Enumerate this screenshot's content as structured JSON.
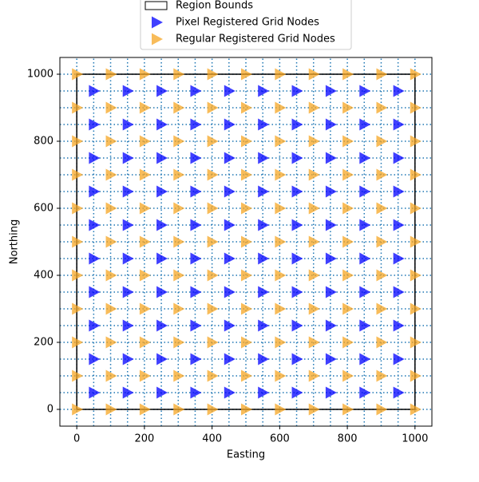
{
  "chart_data": {
    "type": "scatter",
    "xlabel": "Easting",
    "ylabel": "Northing",
    "xlim": [
      -50,
      1050
    ],
    "ylim": [
      -50,
      1050
    ],
    "xticks": [
      0,
      200,
      400,
      600,
      800,
      1000
    ],
    "yticks": [
      0,
      200,
      400,
      600,
      800,
      1000
    ],
    "region": {
      "name": "Region Bounds",
      "color": "#000000",
      "xlim": [
        0,
        1000
      ],
      "ylim": [
        0,
        1000
      ]
    },
    "series": [
      {
        "name": "Pixel Registered Grid Nodes",
        "color": "#0000ff",
        "x": [
          50,
          150,
          250,
          350,
          450,
          550,
          650,
          750,
          850,
          950,
          50,
          150,
          250,
          350,
          450,
          550,
          650,
          750,
          850,
          950,
          50,
          150,
          250,
          350,
          450,
          550,
          650,
          750,
          850,
          950,
          50,
          150,
          250,
          350,
          450,
          550,
          650,
          750,
          850,
          950,
          50,
          150,
          250,
          350,
          450,
          550,
          650,
          750,
          850,
          950,
          50,
          150,
          250,
          350,
          450,
          550,
          650,
          750,
          850,
          950,
          50,
          150,
          250,
          350,
          450,
          550,
          650,
          750,
          850,
          950,
          50,
          150,
          250,
          350,
          450,
          550,
          650,
          750,
          850,
          950,
          50,
          150,
          250,
          350,
          450,
          550,
          650,
          750,
          850,
          950,
          50,
          150,
          250,
          350,
          450,
          550,
          650,
          750,
          850,
          950
        ],
        "y": [
          50,
          50,
          50,
          50,
          50,
          50,
          50,
          50,
          50,
          50,
          150,
          150,
          150,
          150,
          150,
          150,
          150,
          150,
          150,
          150,
          250,
          250,
          250,
          250,
          250,
          250,
          250,
          250,
          250,
          250,
          350,
          350,
          350,
          350,
          350,
          350,
          350,
          350,
          350,
          350,
          450,
          450,
          450,
          450,
          450,
          450,
          450,
          450,
          450,
          450,
          550,
          550,
          550,
          550,
          550,
          550,
          550,
          550,
          550,
          550,
          650,
          650,
          650,
          650,
          650,
          650,
          650,
          650,
          650,
          650,
          750,
          750,
          750,
          750,
          750,
          750,
          750,
          750,
          750,
          750,
          850,
          850,
          850,
          850,
          850,
          850,
          850,
          850,
          850,
          850,
          950,
          950,
          950,
          950,
          950,
          950,
          950,
          950,
          950,
          950
        ]
      },
      {
        "name": "Regular Registered Grid Nodes",
        "color": "#f5a623",
        "x": [
          0,
          100,
          200,
          300,
          400,
          500,
          600,
          700,
          800,
          900,
          1000,
          0,
          100,
          200,
          300,
          400,
          500,
          600,
          700,
          800,
          900,
          1000,
          0,
          100,
          200,
          300,
          400,
          500,
          600,
          700,
          800,
          900,
          1000,
          0,
          100,
          200,
          300,
          400,
          500,
          600,
          700,
          800,
          900,
          1000,
          0,
          100,
          200,
          300,
          400,
          500,
          600,
          700,
          800,
          900,
          1000,
          0,
          100,
          200,
          300,
          400,
          500,
          600,
          700,
          800,
          900,
          1000,
          0,
          100,
          200,
          300,
          400,
          500,
          600,
          700,
          800,
          900,
          1000,
          0,
          100,
          200,
          300,
          400,
          500,
          600,
          700,
          800,
          900,
          1000,
          0,
          100,
          200,
          300,
          400,
          500,
          600,
          700,
          800,
          900,
          1000,
          0,
          100,
          200,
          300,
          400,
          500,
          600,
          700,
          800,
          900,
          1000,
          0,
          100,
          200,
          300,
          400,
          500,
          600,
          700,
          800,
          900,
          1000
        ],
        "y": [
          0,
          0,
          0,
          0,
          0,
          0,
          0,
          0,
          0,
          0,
          0,
          100,
          100,
          100,
          100,
          100,
          100,
          100,
          100,
          100,
          100,
          100,
          200,
          200,
          200,
          200,
          200,
          200,
          200,
          200,
          200,
          200,
          200,
          300,
          300,
          300,
          300,
          300,
          300,
          300,
          300,
          300,
          300,
          300,
          400,
          400,
          400,
          400,
          400,
          400,
          400,
          400,
          400,
          400,
          400,
          500,
          500,
          500,
          500,
          500,
          500,
          500,
          500,
          500,
          500,
          500,
          600,
          600,
          600,
          600,
          600,
          600,
          600,
          600,
          600,
          600,
          600,
          700,
          700,
          700,
          700,
          700,
          700,
          700,
          700,
          700,
          700,
          700,
          800,
          800,
          800,
          800,
          800,
          800,
          800,
          800,
          800,
          800,
          800,
          900,
          900,
          900,
          900,
          900,
          900,
          900,
          900,
          900,
          900,
          900,
          1000,
          1000,
          1000,
          1000,
          1000,
          1000,
          1000,
          1000,
          1000,
          1000,
          1000
        ]
      }
    ]
  }
}
